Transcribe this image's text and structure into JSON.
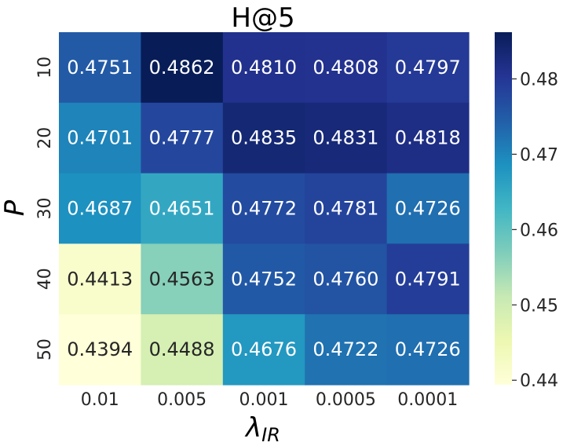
{
  "chart_data": {
    "type": "heatmap",
    "title": "H@5",
    "xlabel": "λ",
    "xlabel_sub": "IR",
    "ylabel": "P",
    "x_categories": [
      "0.01",
      "0.005",
      "0.001",
      "0.0005",
      "0.0001"
    ],
    "y_categories": [
      "10",
      "20",
      "30",
      "40",
      "50"
    ],
    "values": [
      [
        0.4751,
        0.4862,
        0.481,
        0.4808,
        0.4797
      ],
      [
        0.4701,
        0.4777,
        0.4835,
        0.4831,
        0.4818
      ],
      [
        0.4687,
        0.4651,
        0.4772,
        0.4781,
        0.4726
      ],
      [
        0.4413,
        0.4563,
        0.4752,
        0.476,
        0.4791
      ],
      [
        0.4394,
        0.4488,
        0.4676,
        0.4722,
        0.4726
      ]
    ],
    "value_labels": [
      [
        "0.4751",
        "0.4862",
        "0.4810",
        "0.4808",
        "0.4797"
      ],
      [
        "0.4701",
        "0.4777",
        "0.4835",
        "0.4831",
        "0.4818"
      ],
      [
        "0.4687",
        "0.4651",
        "0.4772",
        "0.4781",
        "0.4726"
      ],
      [
        "0.4413",
        "0.4563",
        "0.4752",
        "0.4760",
        "0.4791"
      ],
      [
        "0.4394",
        "0.4488",
        "0.4676",
        "0.4722",
        "0.4726"
      ]
    ],
    "colormap": "YlGnBu",
    "color_range": [
      0.4394,
      0.4862
    ],
    "colorbar_ticks": [
      0.44,
      0.45,
      0.46,
      0.47,
      0.48
    ],
    "colorbar_tick_labels": [
      "0.44",
      "0.45",
      "0.46",
      "0.47",
      "0.48"
    ],
    "legend": "colorbar on the right",
    "grid": false
  }
}
